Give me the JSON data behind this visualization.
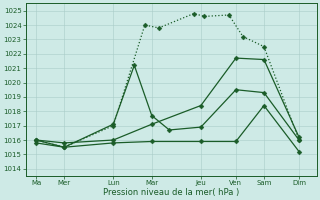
{
  "bg_color": "#ceeae6",
  "grid_color": "#aaccc8",
  "line_color": "#1a5c28",
  "title": "Pression niveau de la mer( hPa )",
  "ylim": [
    1013.5,
    1025.5
  ],
  "yticks": [
    1014,
    1015,
    1016,
    1017,
    1018,
    1019,
    1020,
    1021,
    1022,
    1023,
    1024,
    1025
  ],
  "x_labels": [
    "Ma",
    "Mer",
    "Lun",
    "Mar",
    "Jeu",
    "Ven",
    "Sam",
    "Dim"
  ],
  "x_positions": [
    0,
    0.8,
    2.2,
    3.3,
    4.7,
    5.7,
    6.5,
    7.5
  ],
  "xlim": [
    -0.3,
    8.0
  ],
  "lines": [
    {
      "x": [
        0.0,
        0.8,
        2.2,
        3.1,
        3.5,
        4.5,
        4.8,
        5.5,
        5.9,
        6.5,
        7.5
      ],
      "y": [
        1016.0,
        1015.5,
        1017.0,
        1024.0,
        1023.8,
        1024.8,
        1024.6,
        1024.7,
        1023.2,
        1022.5,
        1016.0
      ],
      "marker": "D",
      "markersize": 2.5,
      "linewidth": 0.9,
      "linestyle": ":"
    },
    {
      "x": [
        0.0,
        0.8,
        2.2,
        2.8,
        3.3,
        3.8,
        4.7,
        5.7,
        6.5,
        7.5
      ],
      "y": [
        1016.0,
        1015.5,
        1017.1,
        1021.2,
        1017.7,
        1016.7,
        1016.9,
        1019.5,
        1019.3,
        1016.0
      ],
      "marker": "D",
      "markersize": 2.5,
      "linewidth": 0.9,
      "linestyle": "-"
    },
    {
      "x": [
        0.0,
        0.8,
        2.2,
        3.3,
        4.7,
        5.7,
        6.5,
        7.5
      ],
      "y": [
        1015.8,
        1015.5,
        1015.8,
        1015.9,
        1015.9,
        1015.9,
        1018.4,
        1015.2
      ],
      "marker": "D",
      "markersize": 2.5,
      "linewidth": 0.9,
      "linestyle": "-"
    },
    {
      "x": [
        0.0,
        0.8,
        2.2,
        3.3,
        4.7,
        5.7,
        6.5,
        7.5
      ],
      "y": [
        1016.0,
        1015.8,
        1016.0,
        1017.1,
        1018.4,
        1021.7,
        1021.6,
        1016.2
      ],
      "marker": "D",
      "markersize": 2.5,
      "linewidth": 0.9,
      "linestyle": "-"
    }
  ],
  "title_fontsize": 6.0,
  "tick_fontsize": 5.0,
  "xlabel_pad": 1
}
